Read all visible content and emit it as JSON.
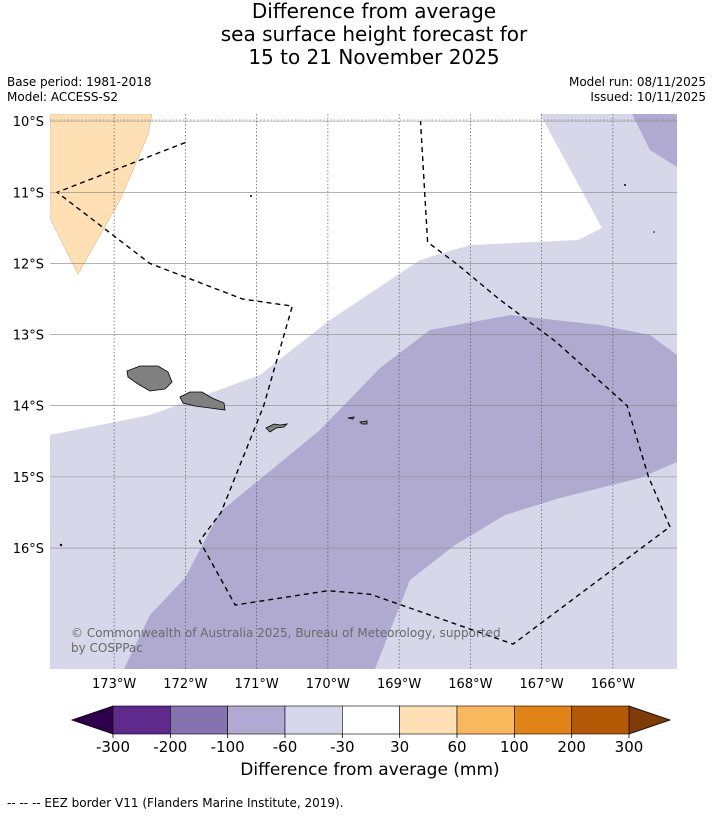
{
  "title_lines": [
    "Difference from average",
    "sea surface height forecast for",
    "15 to 21 November 2025"
  ],
  "meta": {
    "base_period": "Base period: 1981-2018",
    "model": "Model: ACCESS-S2",
    "model_run": "Model run: 08/11/2025",
    "issued": "Issued: 10/11/2025"
  },
  "map": {
    "lon_range": [
      -173.9,
      -165.1
    ],
    "lat_range": [
      -17.7,
      -9.9
    ],
    "lat_ticks": [
      {
        "value": -10,
        "label": "10°S"
      },
      {
        "value": -11,
        "label": "11°S"
      },
      {
        "value": -12,
        "label": "12°S"
      },
      {
        "value": -13,
        "label": "13°S"
      },
      {
        "value": -14,
        "label": "14°S"
      },
      {
        "value": -15,
        "label": "15°S"
      },
      {
        "value": -16,
        "label": "16°S"
      }
    ],
    "lon_ticks": [
      {
        "value": -173,
        "label": "173°W"
      },
      {
        "value": -172,
        "label": "172°W"
      },
      {
        "value": -171,
        "label": "171°W"
      },
      {
        "value": -170,
        "label": "170°W"
      },
      {
        "value": -169,
        "label": "169°W"
      },
      {
        "value": -168,
        "label": "168°W"
      },
      {
        "value": -167,
        "label": "167°W"
      },
      {
        "value": -166,
        "label": "166°W"
      }
    ],
    "copyright": "© Commonwealth of Australia 2025, Bureau of Meteorology, supported by COSPPac",
    "land_color": "#808080",
    "eez_border": [
      [
        -172.0,
        -10.3
      ],
      [
        -173.8,
        -11.0
      ],
      [
        -172.5,
        -12.0
      ],
      [
        -171.2,
        -12.5
      ],
      [
        -170.5,
        -12.6
      ],
      [
        -170.9,
        -14.0
      ],
      [
        -171.5,
        -15.5
      ],
      [
        -171.8,
        -15.9
      ],
      [
        -171.3,
        -16.8
      ],
      [
        -170.0,
        -16.6
      ],
      [
        -169.4,
        -16.65
      ],
      [
        -167.4,
        -17.35
      ],
      [
        -165.2,
        -15.7
      ],
      [
        -165.5,
        -15.0
      ],
      [
        -165.8,
        -14.0
      ],
      [
        -166.8,
        -13.1
      ],
      [
        -167.6,
        -12.5
      ],
      [
        -168.2,
        -12.0
      ],
      [
        -168.6,
        -11.7
      ],
      [
        -168.7,
        -10.0
      ]
    ]
  },
  "colorbar": {
    "ticks": [
      "-300",
      "-200",
      "-100",
      "-60",
      "-30",
      "30",
      "60",
      "100",
      "200",
      "300"
    ],
    "colors": [
      "#5e2a8c",
      "#8473ae",
      "#b0aad0",
      "#d7d7ea",
      "#ffffff",
      "#ffe0b5",
      "#f9b85e",
      "#e08418",
      "#b35806"
    ],
    "under_color": "#2d004b",
    "over_color": "#7f3b08",
    "label": "Difference from average (mm)"
  },
  "footnote": "--  --  -- EEZ border V11 (Flanders Marine Institute, 2019)."
}
